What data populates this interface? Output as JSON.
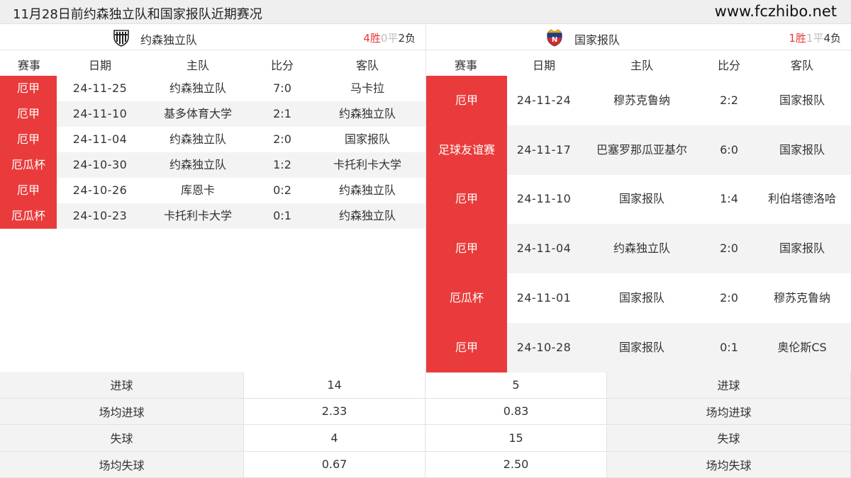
{
  "header": {
    "title": "11月28日前约森独立队和国家报队近期赛况",
    "site": "www.fczhibo.net"
  },
  "columns": [
    "赛事",
    "日期",
    "主队",
    "比分",
    "客队"
  ],
  "left_team": {
    "name": "约森独立队",
    "logo_icon": "shield-striped-icon",
    "record": {
      "win": "4胜",
      "draw": "0平",
      "loss": "2负"
    },
    "matches": [
      {
        "league": "厄甲",
        "date": "24-11-25",
        "home": "约森独立队",
        "score": "7:0",
        "away": "马卡拉"
      },
      {
        "league": "厄甲",
        "date": "24-11-10",
        "home": "基多体育大学",
        "score": "2:1",
        "away": "约森独立队"
      },
      {
        "league": "厄甲",
        "date": "24-11-04",
        "home": "约森独立队",
        "score": "2:0",
        "away": "国家报队"
      },
      {
        "league": "厄瓜杯",
        "date": "24-10-30",
        "home": "约森独立队",
        "score": "1:2",
        "away": "卡托利卡大学"
      },
      {
        "league": "厄甲",
        "date": "24-10-26",
        "home": "库恩卡",
        "score": "0:2",
        "away": "约森独立队"
      },
      {
        "league": "厄瓜杯",
        "date": "24-10-23",
        "home": "卡托利卡大学",
        "score": "0:1",
        "away": "约森独立队"
      }
    ]
  },
  "right_team": {
    "name": "国家报队",
    "logo_icon": "shield-crown-icon",
    "record": {
      "win": "1胜",
      "draw": "1平",
      "loss": "4负"
    },
    "matches": [
      {
        "league": "厄甲",
        "date": "24-11-24",
        "home": "穆苏克鲁纳",
        "score": "2:2",
        "away": "国家报队"
      },
      {
        "league": "足球友谊赛",
        "date": "24-11-17",
        "home": "巴塞罗那瓜亚基尔",
        "score": "6:0",
        "away": "国家报队"
      },
      {
        "league": "厄甲",
        "date": "24-11-10",
        "home": "国家报队",
        "score": "1:4",
        "away": "利伯塔德洛哈"
      },
      {
        "league": "厄甲",
        "date": "24-11-04",
        "home": "约森独立队",
        "score": "2:0",
        "away": "国家报队"
      },
      {
        "league": "厄瓜杯",
        "date": "24-11-01",
        "home": "国家报队",
        "score": "2:0",
        "away": "穆苏克鲁纳"
      },
      {
        "league": "厄甲",
        "date": "24-10-28",
        "home": "国家报队",
        "score": "0:1",
        "away": "奥伦斯CS"
      }
    ]
  },
  "stats": [
    {
      "label": "进球",
      "left": "14",
      "right": "5"
    },
    {
      "label": "场均进球",
      "left": "2.33",
      "right": "0.83"
    },
    {
      "label": "失球",
      "left": "4",
      "right": "15"
    },
    {
      "label": "场均失球",
      "left": "0.67",
      "right": "2.50"
    }
  ],
  "colors": {
    "league_bg": "#e93b3b",
    "win": "#e83a3a",
    "draw": "#bdbdbd"
  }
}
